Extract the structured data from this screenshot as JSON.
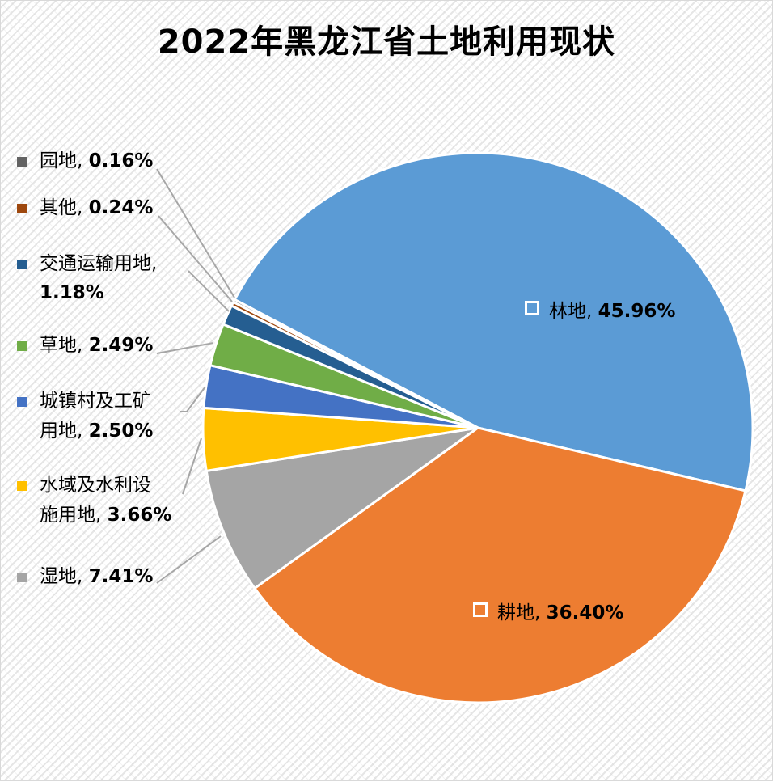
{
  "chart_data": {
    "type": "pie",
    "title": "2022年黑龙江省土地利用现状",
    "unit": "%",
    "start_angle_deg": 297.8,
    "direction": "clockwise",
    "center": [
      590,
      528
    ],
    "radius": 340,
    "slices": [
      {
        "name": "林地",
        "value": 45.96,
        "label": "45.96%",
        "color": "#5B9BD5"
      },
      {
        "name": "耕地",
        "value": 36.4,
        "label": "36.40%",
        "color": "#ED7D31"
      },
      {
        "name": "湿地",
        "value": 7.41,
        "label": "7.41%",
        "color": "#A5A5A5"
      },
      {
        "name": "水域及水利设施用地",
        "value": 3.66,
        "label": "3.66%",
        "color": "#FFC000"
      },
      {
        "name": "城镇村及工矿用地",
        "value": 2.5,
        "label": "2.50%",
        "color": "#4472C4"
      },
      {
        "name": "草地",
        "value": 2.49,
        "label": "2.49%",
        "color": "#70AD47"
      },
      {
        "name": "交通运输用地",
        "value": 1.18,
        "label": "1.18%",
        "color": "#255E91"
      },
      {
        "name": "其他",
        "value": 0.24,
        "label": "0.24%",
        "color": "#9E480E"
      },
      {
        "name": "园地",
        "value": 0.16,
        "label": "0.16%",
        "color": "#636363"
      }
    ],
    "legend": "none (data labels with category name and percentage)",
    "grid": false
  },
  "title": "2022年黑龙江省土地利用现状",
  "inner_labels": {
    "forest": {
      "name": "林地, ",
      "value": "45.96%"
    },
    "farmland": {
      "name": "耕地, ",
      "value": "36.40%"
    }
  },
  "outer_labels": {
    "orchard": {
      "line1": "园地, ",
      "value": "0.16%",
      "color": "#636363"
    },
    "other": {
      "line1": "其他, ",
      "value": "0.24%",
      "color": "#9E480E"
    },
    "transport": {
      "line1": "交通运输用地,",
      "value": "1.18%",
      "color": "#255E91"
    },
    "grass": {
      "line1": "草地, ",
      "value": "2.49%",
      "color": "#70AD47"
    },
    "urban": {
      "line1": "城镇村及工矿",
      "line2": "用地, ",
      "value": "2.50%",
      "color": "#4472C4"
    },
    "water": {
      "line1": "水域及水利设",
      "line2": "施用地, ",
      "value": "3.66%",
      "color": "#FFC000"
    },
    "wetland": {
      "line1": "湿地, ",
      "value": "7.41%",
      "color": "#A5A5A5"
    }
  }
}
